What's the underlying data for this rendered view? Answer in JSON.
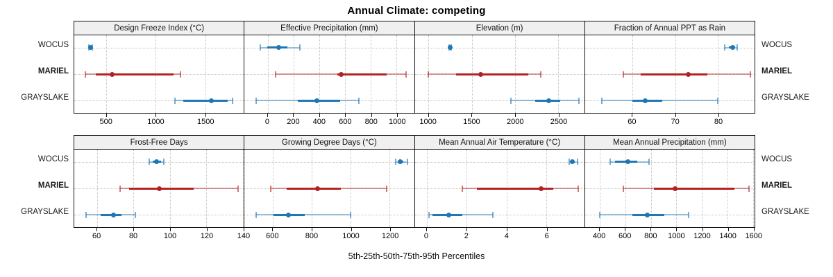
{
  "title": "Annual Climate: competing",
  "caption": "5th-25th-50th-75th-95th Percentiles",
  "percentile_labels": [
    "5th",
    "25th",
    "50th",
    "75th",
    "95th"
  ],
  "colors": {
    "site_blue": "#1f77b4",
    "site_red": "#b22222",
    "strip_bg": "#f0f0f0",
    "grid": "#c3c3c3",
    "border": "#111111"
  },
  "groups": [
    {
      "label": "WOCUS",
      "color": "#1f77b4",
      "bold": false
    },
    {
      "label": "MARIEL",
      "color": "#b22222",
      "bold": true
    },
    {
      "label": "GRAYSLAKE",
      "color": "#1f77b4",
      "bold": false
    }
  ],
  "chart_data": [
    {
      "type": "dot-whisker",
      "panel": "Design Freeze Index (°C)",
      "row": 1,
      "xticks": [
        500,
        1000,
        1500
      ],
      "xdomain": [
        175,
        1890
      ],
      "series": [
        {
          "name": "WOCUS",
          "percentiles": [
            320,
            330,
            340,
            350,
            355
          ]
        },
        {
          "name": "MARIEL",
          "percentiles": [
            285,
            390,
            560,
            1180,
            1250
          ]
        },
        {
          "name": "GRAYSLAKE",
          "percentiles": [
            1190,
            1275,
            1565,
            1725,
            1775
          ]
        }
      ]
    },
    {
      "type": "dot-whisker",
      "panel": "Effective Precipitation (mm)",
      "row": 1,
      "xticks": [
        0,
        200,
        400,
        600,
        800,
        1000
      ],
      "xdomain": [
        -180,
        1135
      ],
      "series": [
        {
          "name": "WOCUS",
          "percentiles": [
            -60,
            -5,
            85,
            155,
            250
          ]
        },
        {
          "name": "MARIEL",
          "percentiles": [
            60,
            540,
            570,
            925,
            1075
          ]
        },
        {
          "name": "GRAYSLAKE",
          "percentiles": [
            -90,
            235,
            380,
            560,
            705
          ]
        }
      ]
    },
    {
      "type": "dot-whisker",
      "panel": "Elevation (m)",
      "row": 1,
      "xticks": [
        1000,
        1500,
        2000,
        2500
      ],
      "xdomain": [
        840,
        2800
      ],
      "series": [
        {
          "name": "WOCUS",
          "percentiles": [
            1240,
            1245,
            1250,
            1255,
            1262
          ]
        },
        {
          "name": "MARIEL",
          "percentiles": [
            1000,
            1315,
            1600,
            2155,
            2300
          ]
        },
        {
          "name": "GRAYSLAKE",
          "percentiles": [
            1955,
            2235,
            2390,
            2525,
            2740
          ]
        }
      ]
    },
    {
      "type": "dot-whisker",
      "panel": "Fraction of Annual PPT as Rain",
      "row": 1,
      "xticks": [
        60,
        70,
        80
      ],
      "xdomain": [
        49,
        88.5
      ],
      "series": [
        {
          "name": "WOCUS",
          "percentiles": [
            81.5,
            82.5,
            83.4,
            84,
            84.5
          ]
        },
        {
          "name": "MARIEL",
          "percentiles": [
            58,
            62,
            73,
            77.5,
            87.5
          ]
        },
        {
          "name": "GRAYSLAKE",
          "percentiles": [
            53,
            60,
            63,
            67,
            80
          ]
        }
      ]
    },
    {
      "type": "dot-whisker",
      "panel": "Frost-Free Days",
      "row": 2,
      "xticks": [
        60,
        80,
        100,
        120,
        140
      ],
      "xdomain": [
        47.5,
        140.5
      ],
      "series": [
        {
          "name": "WOCUS",
          "percentiles": [
            88.5,
            90.5,
            92.5,
            95,
            96.5
          ]
        },
        {
          "name": "MARIEL",
          "percentiles": [
            72.5,
            77.5,
            94,
            113,
            137.5
          ]
        },
        {
          "name": "GRAYSLAKE",
          "percentiles": [
            54,
            62,
            69,
            73.5,
            81
          ]
        }
      ]
    },
    {
      "type": "dot-whisker",
      "panel": "Growing Degree Days (°C)",
      "row": 2,
      "xticks": [
        600,
        800,
        1000,
        1200
      ],
      "xdomain": [
        455,
        1325
      ],
      "series": [
        {
          "name": "WOCUS",
          "percentiles": [
            1230,
            1245,
            1255,
            1270,
            1290
          ]
        },
        {
          "name": "MARIEL",
          "percentiles": [
            590,
            670,
            830,
            950,
            1185
          ]
        },
        {
          "name": "GRAYSLAKE",
          "percentiles": [
            515,
            605,
            680,
            765,
            1000
          ]
        }
      ]
    },
    {
      "type": "dot-whisker",
      "panel": "Mean Annual Air Temperature (°C)",
      "row": 2,
      "xticks": [
        0,
        2,
        4,
        6
      ],
      "xdomain": [
        -0.6,
        7.9
      ],
      "series": [
        {
          "name": "WOCUS",
          "percentiles": [
            7.15,
            7.25,
            7.3,
            7.4,
            7.55
          ]
        },
        {
          "name": "MARIEL",
          "percentiles": [
            1.8,
            2.5,
            5.75,
            6.35,
            7.6
          ]
        },
        {
          "name": "GRAYSLAKE",
          "percentiles": [
            0.1,
            0.3,
            1.1,
            1.8,
            3.3
          ]
        }
      ]
    },
    {
      "type": "dot-whisker",
      "panel": "Mean Annual Precipitation (mm)",
      "row": 2,
      "xticks": [
        400,
        600,
        800,
        1000,
        1200,
        1400,
        1600
      ],
      "xdomain": [
        285,
        1612
      ],
      "series": [
        {
          "name": "WOCUS",
          "percentiles": [
            480,
            520,
            620,
            695,
            785
          ]
        },
        {
          "name": "MARIEL",
          "percentiles": [
            585,
            825,
            990,
            1455,
            1570
          ]
        },
        {
          "name": "GRAYSLAKE",
          "percentiles": [
            400,
            655,
            770,
            905,
            1095
          ]
        }
      ]
    }
  ]
}
